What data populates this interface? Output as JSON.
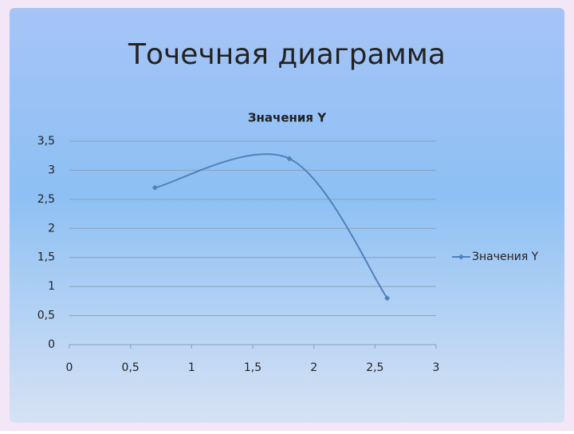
{
  "title": "Точечная диаграмма",
  "chart_data": {
    "type": "scatter",
    "title": "Значения Y",
    "x": [
      0.7,
      1.8,
      2.6
    ],
    "series": [
      {
        "name": "Значения Y",
        "color": "#4f81bd",
        "values": [
          2.7,
          3.2,
          0.8
        ]
      }
    ],
    "xlim": [
      0,
      3
    ],
    "ylim": [
      0,
      3.5
    ],
    "xticks": [
      0,
      {
        "value": 0.5,
        "label": "0,5"
      },
      1,
      {
        "value": 1.5,
        "label": "1,5"
      },
      2,
      {
        "value": 2.5,
        "label": "2,5"
      },
      3
    ],
    "yticks": [
      0,
      {
        "value": 0.5,
        "label": "0,5"
      },
      1,
      {
        "value": 1.5,
        "label": "1,5"
      },
      2,
      {
        "value": 2.5,
        "label": "2,5"
      },
      3,
      {
        "value": 3.5,
        "label": "3,5"
      }
    ],
    "grid": true,
    "smooth": true,
    "legend": "right"
  }
}
